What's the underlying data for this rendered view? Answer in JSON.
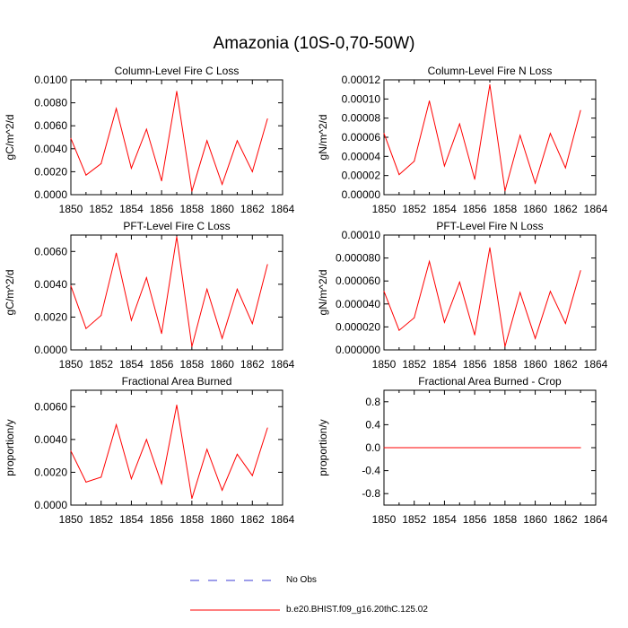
{
  "title": "Amazonia (10S-0,70-50W)",
  "colors": {
    "series": "#ff0000",
    "obs": "#3b3bd6",
    "axis": "#000000"
  },
  "legend": {
    "obs_label": "No Obs",
    "series_label": "b.e20.BHIST.f09_g16.20thC.125.02"
  },
  "chart_data": [
    {
      "type": "line",
      "title": "Column-Level Fire C Loss",
      "xlabel": "",
      "ylabel": "gC/m^2/d",
      "xlim": [
        1850,
        1864
      ],
      "ylim": [
        0,
        0.01
      ],
      "xticks": [
        "1850",
        "1852",
        "1854",
        "1856",
        "1858",
        "1860",
        "1862",
        "1864"
      ],
      "yticks": [
        {
          "v": 0.0,
          "label": "0.0000"
        },
        {
          "v": 0.002,
          "label": "0.0020"
        },
        {
          "v": 0.004,
          "label": "0.0040"
        },
        {
          "v": 0.006,
          "label": "0.0060"
        },
        {
          "v": 0.008,
          "label": "0.0080"
        },
        {
          "v": 0.01,
          "label": "0.0100"
        }
      ],
      "series": [
        {
          "name": "b.e20.BHIST.f09_g16.20thC.125.02",
          "x": [
            1850,
            1851,
            1852,
            1853,
            1854,
            1855,
            1856,
            1857,
            1858,
            1859,
            1860,
            1861,
            1862,
            1863
          ],
          "values": [
            0.0049,
            0.0017,
            0.0027,
            0.0075,
            0.0023,
            0.0057,
            0.0012,
            0.009,
            0.0003,
            0.0047,
            0.0009,
            0.0047,
            0.002,
            0.0066
          ]
        }
      ]
    },
    {
      "type": "line",
      "title": "Column-Level Fire N Loss",
      "xlabel": "",
      "ylabel": "gN/m^2/d",
      "xlim": [
        1850,
        1864
      ],
      "ylim": [
        0,
        0.00012
      ],
      "xticks": [
        "1850",
        "1852",
        "1854",
        "1856",
        "1858",
        "1860",
        "1862",
        "1864"
      ],
      "yticks": [
        {
          "v": 0.0,
          "label": "0.00000"
        },
        {
          "v": 2e-05,
          "label": "0.00002"
        },
        {
          "v": 4e-05,
          "label": "0.00004"
        },
        {
          "v": 6e-05,
          "label": "0.00006"
        },
        {
          "v": 8e-05,
          "label": "0.00008"
        },
        {
          "v": 0.0001,
          "label": "0.00010"
        },
        {
          "v": 0.00012,
          "label": "0.00012"
        }
      ],
      "series": [
        {
          "name": "b.e20.BHIST.f09_g16.20thC.125.02",
          "x": [
            1850,
            1851,
            1852,
            1853,
            1854,
            1855,
            1856,
            1857,
            1858,
            1859,
            1860,
            1861,
            1862,
            1863
          ],
          "values": [
            6.4e-05,
            2.1e-05,
            3.5e-05,
            9.8e-05,
            3e-05,
            7.4e-05,
            1.6e-05,
            0.000115,
            4e-06,
            6.2e-05,
            1.2e-05,
            6.4e-05,
            2.8e-05,
            8.8e-05
          ]
        }
      ]
    },
    {
      "type": "line",
      "title": "PFT-Level Fire C Loss",
      "xlabel": "",
      "ylabel": "gC/m^2/d",
      "xlim": [
        1850,
        1864
      ],
      "ylim": [
        0,
        0.007
      ],
      "xticks": [
        "1850",
        "1852",
        "1854",
        "1856",
        "1858",
        "1860",
        "1862",
        "1864"
      ],
      "yticks": [
        {
          "v": 0.0,
          "label": "0.0000"
        },
        {
          "v": 0.002,
          "label": "0.0020"
        },
        {
          "v": 0.004,
          "label": "0.0040"
        },
        {
          "v": 0.006,
          "label": "0.0060"
        }
      ],
      "series": [
        {
          "name": "b.e20.BHIST.f09_g16.20thC.125.02",
          "x": [
            1850,
            1851,
            1852,
            1853,
            1854,
            1855,
            1856,
            1857,
            1858,
            1859,
            1860,
            1861,
            1862,
            1863
          ],
          "values": [
            0.0039,
            0.0013,
            0.0021,
            0.0059,
            0.0018,
            0.0044,
            0.001,
            0.0069,
            0.0002,
            0.0037,
            0.0007,
            0.0037,
            0.0016,
            0.0052
          ]
        }
      ]
    },
    {
      "type": "line",
      "title": "PFT-Level Fire N Loss",
      "xlabel": "",
      "ylabel": "gN/m^2/d",
      "xlim": [
        1850,
        1864
      ],
      "ylim": [
        0,
        0.0001
      ],
      "xticks": [
        "1850",
        "1852",
        "1854",
        "1856",
        "1858",
        "1860",
        "1862",
        "1864"
      ],
      "yticks": [
        {
          "v": 0.0,
          "label": "0.000000"
        },
        {
          "v": 2e-05,
          "label": "0.000020"
        },
        {
          "v": 4e-05,
          "label": "0.000040"
        },
        {
          "v": 6e-05,
          "label": "0.000060"
        },
        {
          "v": 8e-05,
          "label": "0.000080"
        },
        {
          "v": 0.0001,
          "label": "0.00010"
        }
      ],
      "series": [
        {
          "name": "b.e20.BHIST.f09_g16.20thC.125.02",
          "x": [
            1850,
            1851,
            1852,
            1853,
            1854,
            1855,
            1856,
            1857,
            1858,
            1859,
            1860,
            1861,
            1862,
            1863
          ],
          "values": [
            5.1e-05,
            1.7e-05,
            2.8e-05,
            7.7e-05,
            2.4e-05,
            5.9e-05,
            1.3e-05,
            8.9e-05,
            3e-06,
            5e-05,
            1e-05,
            5.1e-05,
            2.3e-05,
            6.9e-05
          ]
        }
      ]
    },
    {
      "type": "line",
      "title": "Fractional Area Burned",
      "xlabel": "",
      "ylabel": "proportion/y",
      "xlim": [
        1850,
        1864
      ],
      "ylim": [
        0,
        0.007
      ],
      "xticks": [
        "1850",
        "1852",
        "1854",
        "1856",
        "1858",
        "1860",
        "1862",
        "1864"
      ],
      "yticks": [
        {
          "v": 0.0,
          "label": "0.0000"
        },
        {
          "v": 0.002,
          "label": "0.0020"
        },
        {
          "v": 0.004,
          "label": "0.0040"
        },
        {
          "v": 0.006,
          "label": "0.0060"
        }
      ],
      "series": [
        {
          "name": "b.e20.BHIST.f09_g16.20thC.125.02",
          "x": [
            1850,
            1851,
            1852,
            1853,
            1854,
            1855,
            1856,
            1857,
            1858,
            1859,
            1860,
            1861,
            1862,
            1863
          ],
          "values": [
            0.0033,
            0.0014,
            0.0017,
            0.0049,
            0.0016,
            0.004,
            0.0013,
            0.0061,
            0.0004,
            0.0034,
            0.0009,
            0.0031,
            0.0018,
            0.0047
          ]
        }
      ]
    },
    {
      "type": "line",
      "title": "Fractional Area Burned - Crop",
      "xlabel": "",
      "ylabel": "proportion/y",
      "xlim": [
        1850,
        1864
      ],
      "ylim": [
        -1,
        1
      ],
      "xticks": [
        "1850",
        "1852",
        "1854",
        "1856",
        "1858",
        "1860",
        "1862",
        "1864"
      ],
      "yticks": [
        {
          "v": -0.8,
          "label": "-0.8"
        },
        {
          "v": -0.4,
          "label": "-0.4"
        },
        {
          "v": 0.0,
          "label": "0.0"
        },
        {
          "v": 0.4,
          "label": "0.4"
        },
        {
          "v": 0.8,
          "label": "0.8"
        }
      ],
      "series": [
        {
          "name": "b.e20.BHIST.f09_g16.20thC.125.02",
          "x": [
            1850,
            1851,
            1852,
            1853,
            1854,
            1855,
            1856,
            1857,
            1858,
            1859,
            1860,
            1861,
            1862,
            1863
          ],
          "values": [
            0,
            0,
            0,
            0,
            0,
            0,
            0,
            0,
            0,
            0,
            0,
            0,
            0,
            0
          ]
        }
      ]
    }
  ]
}
